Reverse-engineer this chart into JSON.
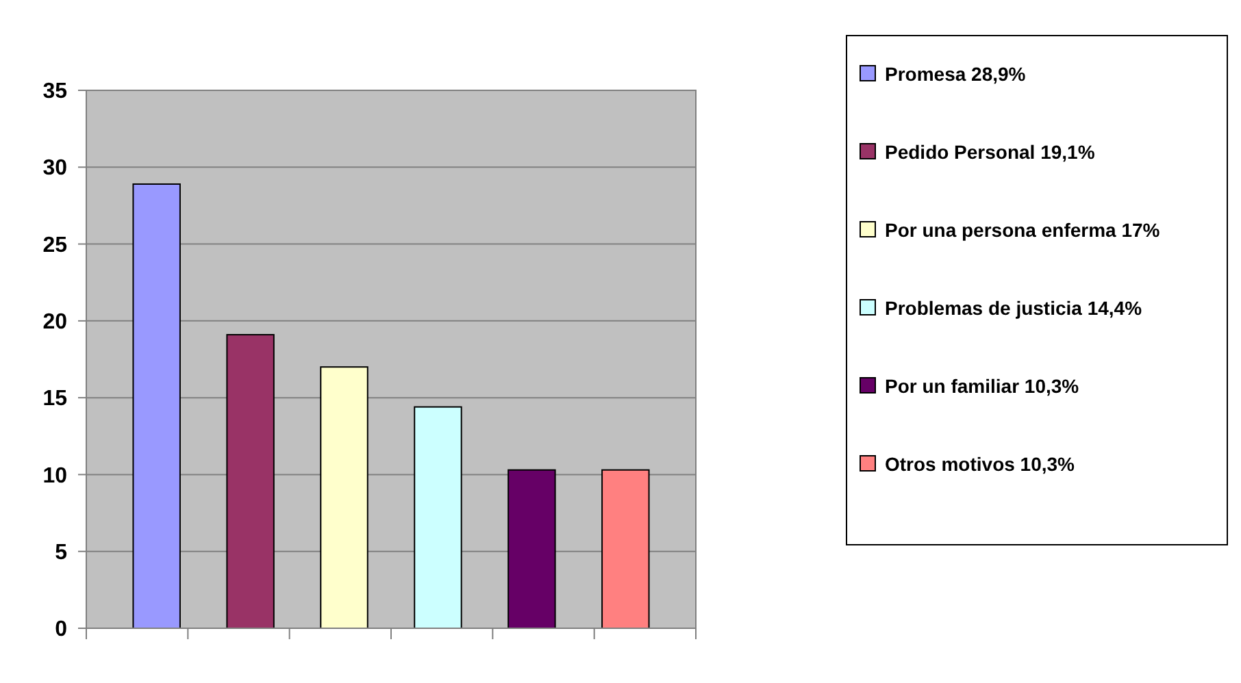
{
  "chart_data": {
    "type": "bar",
    "categories": [
      null,
      null,
      null,
      null,
      null,
      null
    ],
    "series": [
      {
        "name": "Promesa 28,9%",
        "color": "#9999ff",
        "values": [
          28.9,
          null,
          null,
          null,
          null,
          null
        ]
      },
      {
        "name": "Pedido Personal 19,1%",
        "color": "#993366",
        "values": [
          null,
          19.1,
          null,
          null,
          null,
          null
        ]
      },
      {
        "name": "Por una persona enferma 17%",
        "color": "#ffffcc",
        "values": [
          null,
          null,
          17,
          null,
          null,
          null
        ]
      },
      {
        "name": "Problemas de justicia 14,4%",
        "color": "#ccffff",
        "values": [
          null,
          null,
          null,
          14.4,
          null,
          null
        ]
      },
      {
        "name": "Por un familiar 10,3%",
        "color": "#660066",
        "values": [
          null,
          null,
          null,
          null,
          10.3,
          null
        ]
      },
      {
        "name": "Otros motivos 10,3%",
        "color": "#ff8080",
        "values": [
          null,
          null,
          null,
          null,
          null,
          10.3
        ]
      }
    ],
    "ylim": [
      0,
      35
    ],
    "yticks": [
      0,
      5,
      10,
      15,
      20,
      25,
      30,
      35
    ],
    "grid": "y",
    "legend": "right"
  }
}
